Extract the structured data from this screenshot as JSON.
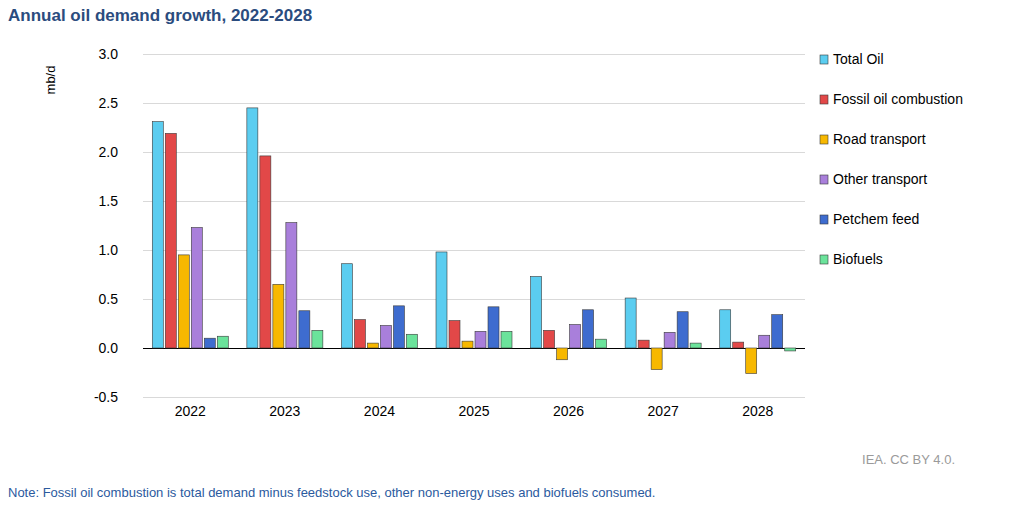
{
  "chart_data": {
    "type": "bar",
    "title": "Annual oil demand growth, 2022-2028",
    "y_label": "mb/d",
    "note": "Note: Fossil oil combustion is total demand minus feedstock use, other non-energy uses and biofuels consumed.",
    "source": "IEA. CC BY 4.0.",
    "categories": [
      "2022",
      "2023",
      "2024",
      "2025",
      "2026",
      "2027",
      "2028"
    ],
    "series": [
      {
        "name": "Total Oil",
        "color": "#5bcdf0",
        "values": [
          2.31,
          2.45,
          0.86,
          0.98,
          0.73,
          0.51,
          0.39
        ]
      },
      {
        "name": "Fossil oil combustion",
        "color": "#e24848",
        "values": [
          2.19,
          1.96,
          0.29,
          0.28,
          0.18,
          0.08,
          0.06
        ]
      },
      {
        "name": "Road transport",
        "color": "#f7b800",
        "values": [
          0.95,
          0.65,
          0.05,
          0.07,
          -0.12,
          -0.22,
          -0.26
        ]
      },
      {
        "name": "Other transport",
        "color": "#a97fdb",
        "values": [
          1.23,
          1.28,
          0.23,
          0.17,
          0.24,
          0.16,
          0.13
        ]
      },
      {
        "name": "Petchem feed",
        "color": "#3e6ccf",
        "values": [
          0.1,
          0.38,
          0.43,
          0.42,
          0.39,
          0.37,
          0.34
        ]
      },
      {
        "name": "Biofuels",
        "color": "#6be39b",
        "values": [
          0.12,
          0.18,
          0.14,
          0.17,
          0.09,
          0.05,
          -0.03
        ]
      }
    ],
    "ylim": [
      -0.5,
      3.0
    ],
    "yticks": [
      -0.5,
      {
        "value": 0,
        "label": "0.0"
      },
      0.5,
      {
        "value": 1,
        "label": "1.0"
      },
      1.5,
      {
        "value": 2,
        "label": "2.0"
      },
      2.5,
      {
        "value": 3,
        "label": "3.0"
      }
    ],
    "grid": true,
    "legend": "right"
  }
}
